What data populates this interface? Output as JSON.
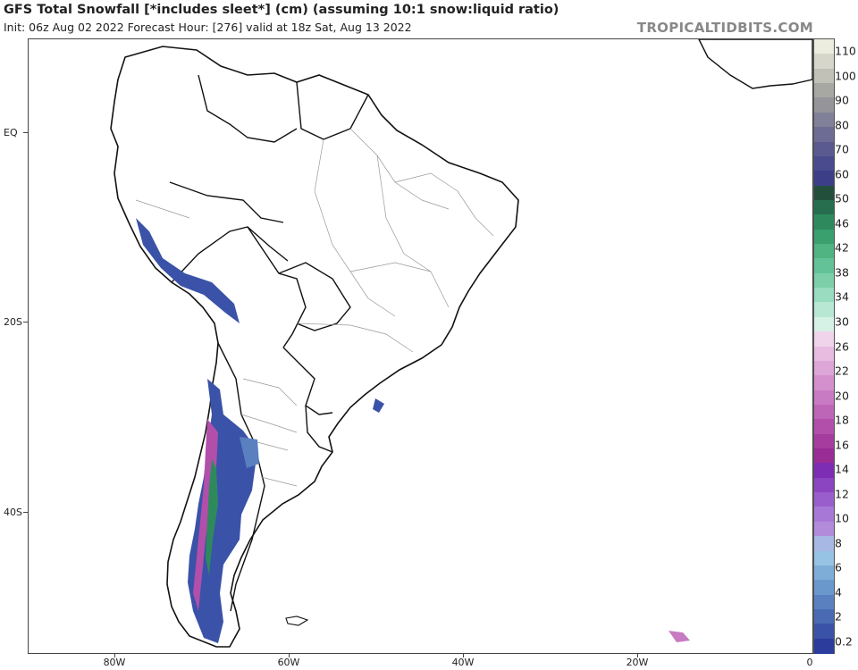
{
  "header": {
    "title": "GFS Total Snowfall [*includes sleet*] (cm) (assuming 10:1 snow:liquid ratio)",
    "subtitle": "Init: 06z Aug 02 2022   Forecast Hour: [276]   valid at 18z Sat, Aug 13 2022",
    "brand": "TROPICALTIDBITS.COM"
  },
  "map": {
    "region": "South America",
    "lon_range": [
      -90,
      0
    ],
    "lat_range": [
      8,
      -58
    ],
    "lat_labels": [
      "EQ",
      "20S",
      "40S"
    ],
    "lon_labels": [
      "80W",
      "60W",
      "40W",
      "20W",
      "0"
    ]
  },
  "colorbar": {
    "labels": [
      "110",
      "100",
      "90",
      "80",
      "70",
      "60",
      "50",
      "46",
      "42",
      "38",
      "34",
      "30",
      "26",
      "22",
      "20",
      "18",
      "16",
      "14",
      "12",
      "10",
      "8",
      "6",
      "4",
      "2",
      "0.2"
    ],
    "colors": [
      "#ececdf",
      "#d6d6cb",
      "#c1c1b7",
      "#a8a8a3",
      "#94949a",
      "#808098",
      "#6c6c94",
      "#5a5a90",
      "#4a4a8e",
      "#3d3e88",
      "#224f3c",
      "#266e4d",
      "#2e8a5c",
      "#3aa06e",
      "#4fb482",
      "#63c298",
      "#7ccfa9",
      "#9adcc0",
      "#b8e8d4",
      "#d6f2e6",
      "#f0d4ec",
      "#e8bce0",
      "#dca6d6",
      "#d390cd",
      "#c87ac2",
      "#bd65b6",
      "#b24fab",
      "#a53c9e",
      "#9a2c95",
      "#7d2db4",
      "#8c45c0",
      "#9a5ecc",
      "#a878d6",
      "#b28cdb",
      "#a8b8e4",
      "#96c2e4",
      "#7eaed8",
      "#6a98cc",
      "#5a80c0",
      "#4a6ab4",
      "#3a52a8",
      "#2c3c9c"
    ]
  },
  "legend_title": ""
}
